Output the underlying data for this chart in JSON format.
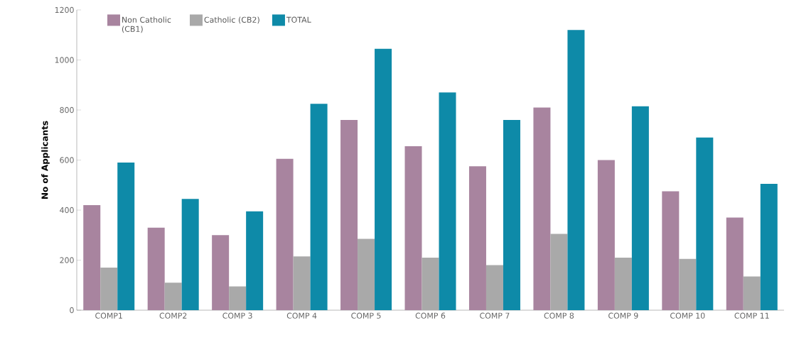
{
  "chart_data": {
    "type": "bar",
    "ylabel": "No of Applicants",
    "categories": [
      "COMP1",
      "COMP2",
      "COMP 3",
      "COMP 4",
      "COMP 5",
      "COMP 6",
      "COMP 7",
      "COMP 8",
      "COMP 9",
      "COMP 10",
      "COMP 11"
    ],
    "series": [
      {
        "name": "Non Catholic (CB1)",
        "color": "#a8849f",
        "values": [
          420,
          330,
          300,
          605,
          760,
          655,
          575,
          810,
          600,
          475,
          370
        ]
      },
      {
        "name": "Catholic (CB2)",
        "color": "#a9a9a9",
        "values": [
          170,
          110,
          95,
          215,
          285,
          210,
          180,
          305,
          210,
          205,
          135
        ]
      },
      {
        "name": "TOTAL",
        "color": "#0e8aa8",
        "values": [
          590,
          445,
          395,
          825,
          1045,
          870,
          760,
          1120,
          815,
          690,
          505
        ]
      }
    ],
    "ylim": [
      0,
      1200
    ],
    "yticks": [
      0,
      200,
      400,
      600,
      800,
      1000,
      1200
    ],
    "grid": false,
    "legend": "top left"
  }
}
